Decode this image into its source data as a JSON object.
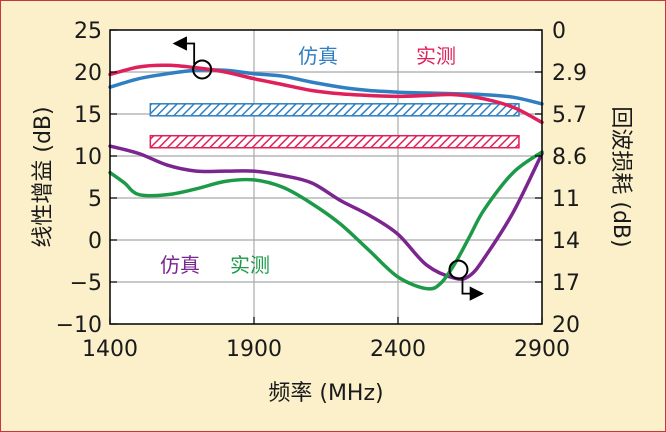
{
  "chart_data": {
    "type": "line",
    "title": "",
    "xlabel": "频率 (MHz)",
    "ylabel": "线性增益 (dB)",
    "y2label": "回波损耗 (dB)",
    "xlim": [
      1400,
      2900
    ],
    "ylim": [
      -10,
      25
    ],
    "y2lim": [
      0,
      20
    ],
    "y2_reversed": true,
    "grid": true,
    "x_ticks": [
      "1400",
      "1900",
      "2400",
      "2900"
    ],
    "y_ticks": [
      "25",
      "20",
      "15",
      "10",
      "5",
      "0",
      "−5",
      "−10"
    ],
    "y2_ticks": [
      "0",
      "2.9",
      "5.7",
      "8.6",
      "11",
      "14",
      "17",
      "20"
    ],
    "legend_gain": {
      "sim": "仿真",
      "meas": "实测"
    },
    "legend_return": {
      "sim": "仿真",
      "meas": "实测"
    },
    "colors": {
      "gain_sim": "#2f7fc1",
      "gain_meas": "#e0205a",
      "return_sim": "#7b2590",
      "return_meas": "#1c9a48",
      "plot_bg": "#ffffff",
      "page_bg": "#fbf0ca",
      "border": "#c9373c"
    },
    "series": [
      {
        "name": "仿真",
        "quantity": "linear gain",
        "axis": "left",
        "x": [
          1400,
          1500,
          1600,
          1700,
          1800,
          1900,
          2000,
          2100,
          2200,
          2300,
          2400,
          2500,
          2600,
          2700,
          2800,
          2900
        ],
        "y": [
          18.2,
          19.2,
          19.8,
          20.2,
          20.2,
          19.8,
          19.5,
          18.8,
          18.2,
          17.8,
          17.6,
          17.5,
          17.4,
          17.3,
          17.0,
          16.2
        ]
      },
      {
        "name": "实测",
        "quantity": "linear gain",
        "axis": "left",
        "x": [
          1400,
          1500,
          1600,
          1700,
          1800,
          1900,
          2000,
          2100,
          2200,
          2300,
          2400,
          2500,
          2600,
          2700,
          2800,
          2900
        ],
        "y": [
          19.7,
          20.6,
          20.8,
          20.5,
          20.0,
          19.2,
          18.5,
          17.8,
          17.4,
          17.2,
          17.1,
          17.2,
          17.3,
          16.8,
          15.8,
          14.0
        ]
      },
      {
        "name": "仿真",
        "quantity": "return loss",
        "axis": "right",
        "x": [
          1400,
          1500,
          1600,
          1700,
          1800,
          1900,
          2000,
          2100,
          2200,
          2300,
          2400,
          2500,
          2600,
          2650,
          2700,
          2800,
          2900
        ],
        "y": [
          7.9,
          8.4,
          9.2,
          9.6,
          9.6,
          9.6,
          9.9,
          10.4,
          11.6,
          12.6,
          13.9,
          16.0,
          16.9,
          16.7,
          15.5,
          12.4,
          8.4
        ]
      },
      {
        "name": "实测",
        "quantity": "return loss",
        "axis": "right",
        "x": [
          1400,
          1450,
          1500,
          1600,
          1700,
          1800,
          1900,
          2000,
          2100,
          2200,
          2300,
          2400,
          2500,
          2550,
          2600,
          2650,
          2700,
          2800,
          2900
        ],
        "y": [
          9.7,
          10.4,
          11.2,
          11.2,
          10.8,
          10.3,
          10.2,
          10.7,
          11.8,
          13.2,
          15.0,
          16.8,
          17.6,
          17.2,
          15.8,
          14.0,
          12.2,
          9.7,
          8.3
        ]
      }
    ],
    "band_bars": [
      {
        "x_start": 1540,
        "x_end": 2820,
        "y": 15.5,
        "color": "#2f7fc1"
      },
      {
        "x_start": 1540,
        "x_end": 2820,
        "y": 11.7,
        "color": "#e0205a"
      }
    ],
    "annotations": [
      {
        "x": 1720,
        "y": 20.3,
        "axis": "left",
        "arrow": "left"
      },
      {
        "x": 2610,
        "y": 16.3,
        "axis": "right",
        "arrow": "right"
      }
    ]
  }
}
